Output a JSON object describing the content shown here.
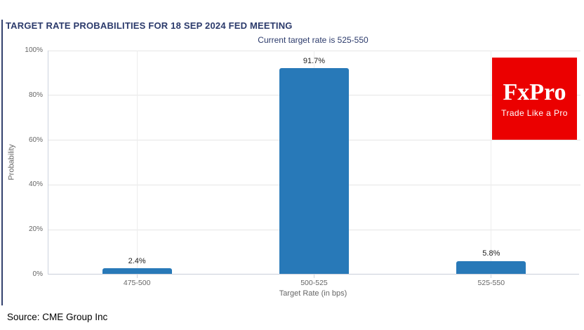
{
  "chart_data": {
    "type": "bar",
    "title": "TARGET RATE PROBABILITIES FOR 18 SEP 2024 FED MEETING",
    "subtitle": "Current target rate is 525-550",
    "categories": [
      "475-500",
      "500-525",
      "525-550"
    ],
    "values": [
      2.4,
      91.7,
      5.8
    ],
    "value_labels": [
      "2.4%",
      "91.7%",
      "5.8%"
    ],
    "xlabel": "Target Rate (in bps)",
    "ylabel": "Probability",
    "ylim": [
      0,
      100
    ],
    "yticks": [
      0,
      20,
      40,
      60,
      80,
      100
    ],
    "ytick_labels": [
      "0%",
      "20%",
      "40%",
      "60%",
      "80%",
      "100%"
    ],
    "grid": true,
    "legend_position": "none",
    "bar_color": "#2879b8"
  },
  "branding": {
    "logo_text": "FxPro",
    "logo_tagline": "Trade Like a Pro",
    "logo_bg_color": "#eb0000",
    "logo_text_color": "#ffffff"
  },
  "footer": {
    "source": "Source: CME Group Inc"
  },
  "colors": {
    "title_text": "#2b3a6b",
    "accent_border": "#33416e"
  }
}
